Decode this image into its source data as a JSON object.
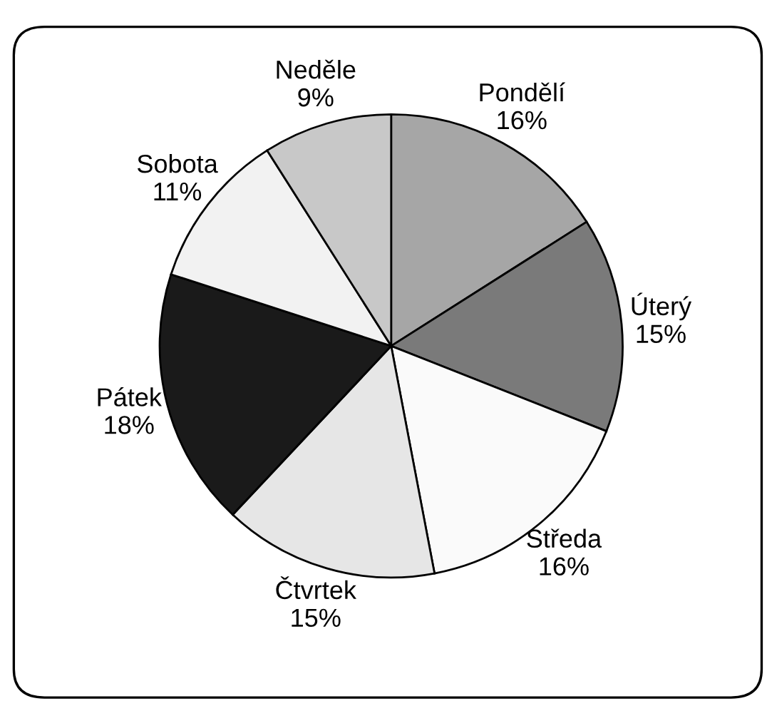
{
  "chart_data": {
    "type": "pie",
    "categories": [
      "Pondělí",
      "Úterý",
      "Středa",
      "Čtvrtek",
      "Pátek",
      "Sobota",
      "Neděle"
    ],
    "values": [
      16,
      15,
      16,
      15,
      18,
      11,
      9
    ],
    "colors": [
      "#a6a6a6",
      "#7a7a7a",
      "#fafafa",
      "#e6e6e6",
      "#1a1a1a",
      "#f2f2f2",
      "#c8c8c8"
    ],
    "value_labels": [
      "16%",
      "15%",
      "16%",
      "15%",
      "18%",
      "11%",
      "9%"
    ]
  }
}
